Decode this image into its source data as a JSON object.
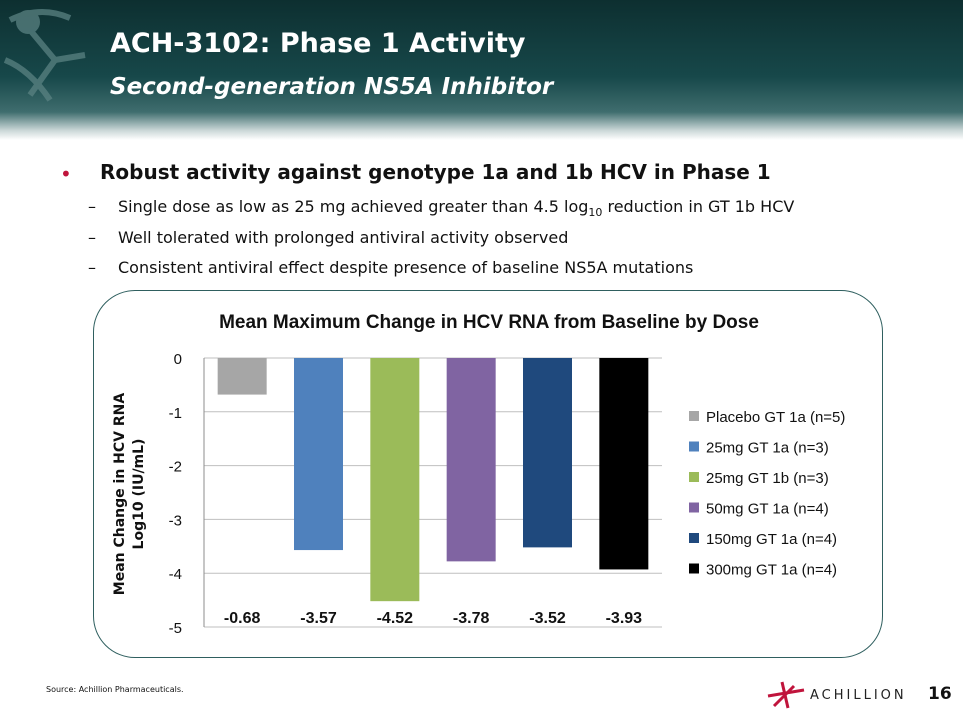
{
  "slide": {
    "title": "ACH-3102: Phase 1 Activity",
    "subtitle": "Second-generation NS5A Inhibitor",
    "bullet": "Robust activity against genotype 1a and 1b HCV in Phase 1",
    "subbullets": [
      {
        "pre": "Single dose as low as 25 mg achieved greater than 4.5 log",
        "sub": "10",
        "post": " reduction in GT 1b HCV"
      },
      {
        "pre": "Well tolerated with prolonged antiviral activity observed",
        "sub": "",
        "post": ""
      },
      {
        "pre": "Consistent antiviral effect despite presence of baseline NS5A mutations",
        "sub": "",
        "post": ""
      }
    ],
    "dash": "–",
    "bullet_symbol": "•",
    "source": "Source: Achillion Pharmaceuticals.",
    "brand": "ACHILLION",
    "page_number": "16"
  },
  "chart_data": {
    "type": "bar",
    "title": "Mean Maximum Change in HCV RNA from Baseline by Dose",
    "ylabel_line1": "Mean Change in HCV RNA",
    "ylabel_line2": "Log10 (IU/mL)",
    "xlabel": "",
    "ylim": [
      -5,
      0
    ],
    "yticks": [
      0,
      -1,
      -2,
      -3,
      -4,
      -5
    ],
    "grid": true,
    "legend_position": "right",
    "categories": [
      "Placebo GT 1a (n=5)",
      "25mg GT 1a (n=3)",
      "25mg GT 1b (n=3)",
      "50mg GT 1a (n=4)",
      "150mg GT 1a (n=4)",
      "300mg GT 1a (n=4)"
    ],
    "values": [
      -0.68,
      -3.57,
      -4.52,
      -3.78,
      -3.52,
      -3.93
    ],
    "data_labels": [
      "-0.68",
      "-3.57",
      "-4.52",
      "-3.78",
      "-3.52",
      "-3.93"
    ],
    "colors": [
      "#a6a6a6",
      "#4f81bd",
      "#9bbb59",
      "#8064a2",
      "#1f497d",
      "#000000"
    ]
  }
}
